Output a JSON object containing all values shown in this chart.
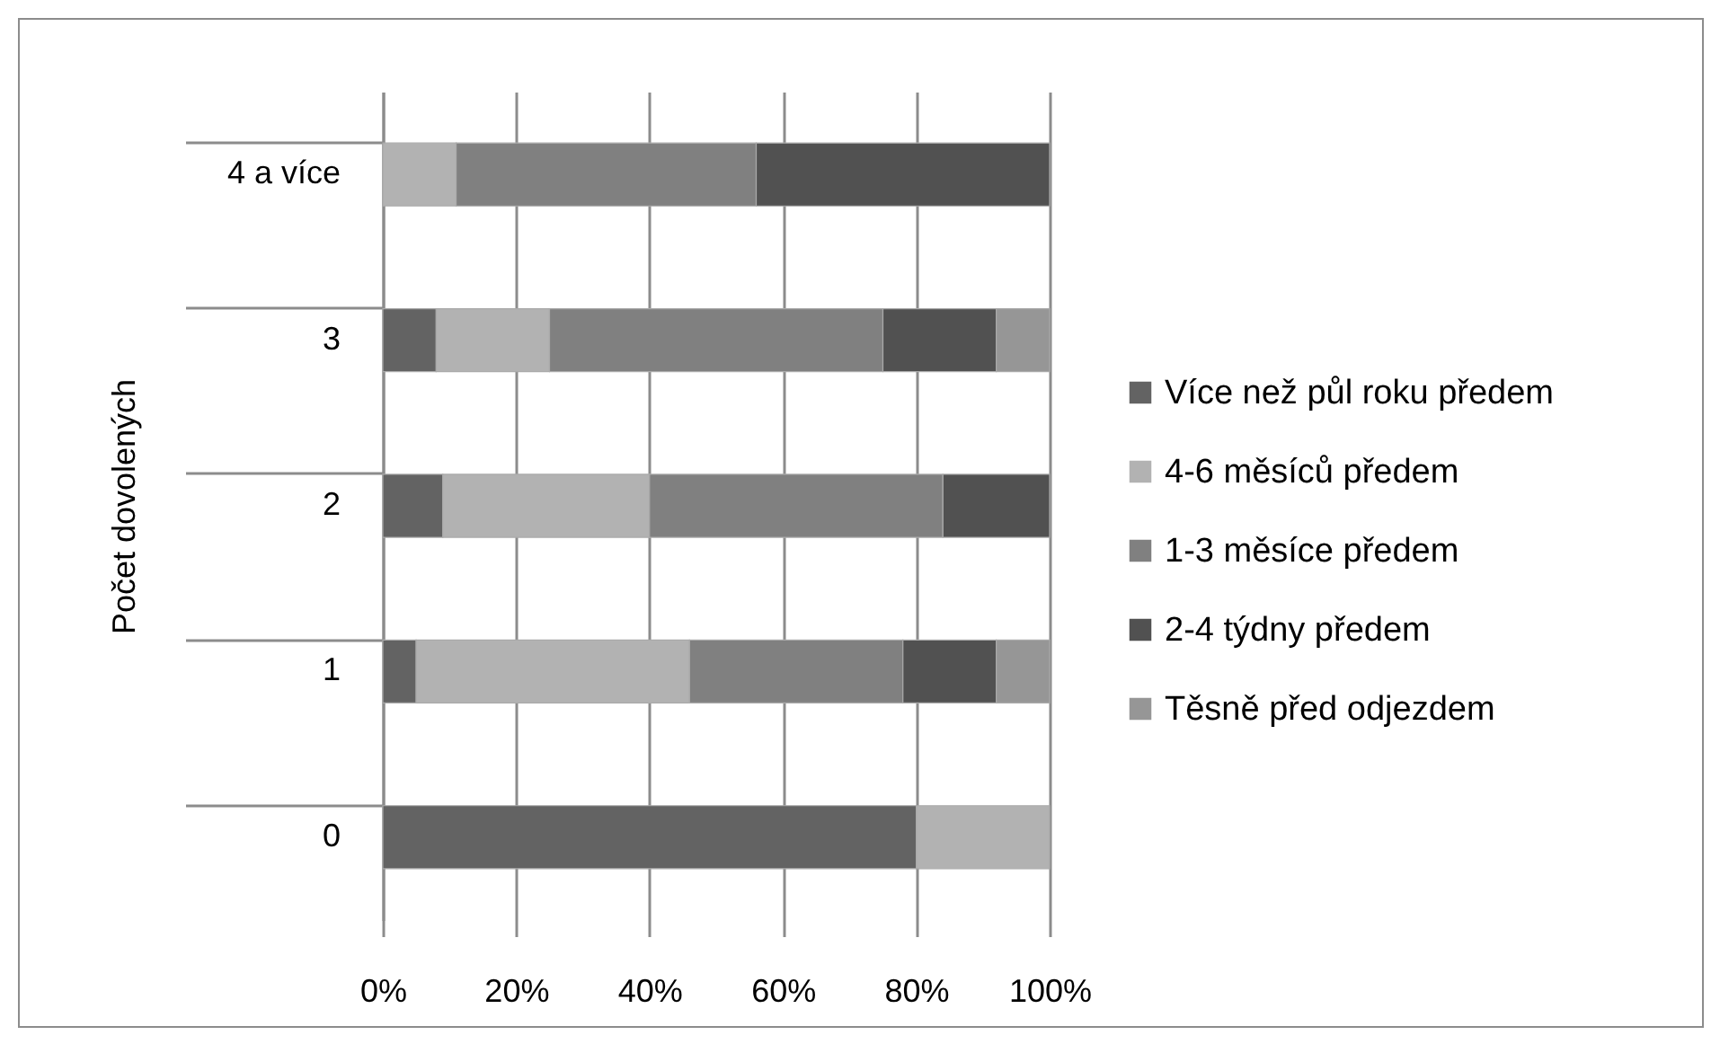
{
  "chart_data": {
    "type": "bar",
    "orientation": "horizontal",
    "stacked": true,
    "ylabel": "Počet dovolených",
    "categories": [
      "4 a více",
      "3",
      "2",
      "1",
      "0"
    ],
    "series": [
      {
        "name": "Více než půl roku předem",
        "color": "#636363",
        "values": [
          null,
          8,
          9,
          5,
          80
        ]
      },
      {
        "name": "4-6 měsíců předem",
        "color": "#b2b2b2",
        "values": [
          11,
          17,
          31,
          41,
          20
        ]
      },
      {
        "name": "1-3 měsíce předem",
        "color": "#808080",
        "values": [
          45,
          50,
          44,
          32,
          null
        ]
      },
      {
        "name": "2-4 týdny předem",
        "color": "#515151",
        "values": [
          44,
          17,
          16,
          14,
          null
        ]
      },
      {
        "name": "Těsně před odjezdem",
        "color": "#969696",
        "values": [
          null,
          8,
          null,
          8,
          null
        ]
      }
    ],
    "xlim": [
      0,
      100
    ],
    "xticks": [
      {
        "value": 0,
        "label": "0%"
      },
      {
        "value": 20,
        "label": "20%"
      },
      {
        "value": 40,
        "label": "40%"
      },
      {
        "value": 60,
        "label": "60%"
      },
      {
        "value": 80,
        "label": "80%"
      },
      {
        "value": 100,
        "label": "100%"
      }
    ],
    "grid": "x",
    "legend": "right"
  }
}
